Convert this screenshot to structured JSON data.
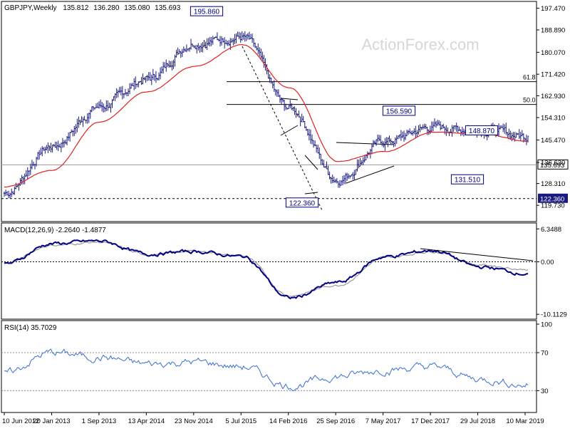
{
  "header": {
    "symbol": "GBPJPY,Weekly",
    "open": "135.812",
    "high": "136.280",
    "low": "135.080",
    "close": "135.693"
  },
  "watermark": "ActionForex.com",
  "colors": {
    "price": "#1a1a80",
    "ma": "#e02020",
    "macd": "#000080",
    "signal": "#9a9a9a",
    "rsi": "#3a6fd0",
    "label_box": "#000080"
  },
  "x_axis": {
    "tick_labels": [
      "10 Jun 2012",
      "20 Jan 2013",
      "1 Sep 2013",
      "13 Apr 2014",
      "23 Nov 2014",
      "5 Jul 2015",
      "14 Feb 2016",
      "25 Sep 2016",
      "7 May 2017",
      "17 Dec 2017",
      "29 Jul 2018",
      "10 Mar 2019"
    ]
  },
  "chart_data": [
    {
      "type": "line",
      "panel": "price",
      "ylim": [
        115.0,
        199.0
      ],
      "y_ticks": [
        "197.470",
        "188.890",
        "180.070",
        "171.420",
        "162.930",
        "154.310",
        "145.470",
        "136.630",
        "128.310",
        "119.730"
      ],
      "y_tick_values": [
        197.47,
        188.89,
        180.07,
        171.42,
        162.93,
        154.31,
        145.47,
        136.63,
        128.31,
        119.73
      ],
      "last_price_label": "135.693",
      "last_price": 135.693,
      "support_label": "122.360",
      "support": 122.36,
      "x": [
        "10 Jun 2012",
        "20 Jan 2013",
        "1 Sep 2013",
        "13 Apr 2014",
        "23 Nov 2014",
        "5 Jul 2015",
        "14 Feb 2016",
        "25 Sep 2016",
        "7 May 2017",
        "17 Dec 2017",
        "29 Jul 2018",
        "10 Mar 2019"
      ],
      "series": [
        {
          "values": [
            124.5,
            143.0,
            158.5,
            169.5,
            184.0,
            186.0,
            158.0,
            130.0,
            145.0,
            150.5,
            149.5,
            147.0
          ]
        },
        {
          "values": [
            127.0,
            133.5,
            152.5,
            164.5,
            174.5,
            183.0,
            166.0,
            137.0,
            141.0,
            148.5,
            148.0,
            145.0
          ]
        }
      ],
      "fib_levels": [
        {
          "label": "61.8",
          "value": 168.5
        },
        {
          "label": "50.0",
          "value": 159.5
        }
      ],
      "annotations": [
        {
          "label": "195.860",
          "value": 195.86
        },
        {
          "label": "122.360",
          "value": 122.36
        },
        {
          "label": "156.590",
          "value": 156.59
        },
        {
          "label": "148.870",
          "value": 148.87
        },
        {
          "label": "131.510",
          "value": 131.51
        }
      ]
    },
    {
      "type": "line",
      "panel": "macd",
      "title": "MACD(12,26,9) -2.2640 -1.4877",
      "ylim": [
        -10.5,
        6.8
      ],
      "y_ticks": [
        "6.3488",
        "0.00",
        "-10.1129"
      ],
      "y_tick_values": [
        6.3488,
        0.0,
        -10.1129
      ],
      "x": [
        "10 Jun 2012",
        "20 Jan 2013",
        "1 Sep 2013",
        "13 Apr 2014",
        "23 Nov 2014",
        "5 Jul 2015",
        "14 Feb 2016",
        "25 Sep 2016",
        "7 May 2017",
        "17 Dec 2017",
        "29 Jul 2018",
        "10 Mar 2019"
      ],
      "series": [
        {
          "values": [
            -0.5,
            3.5,
            4.0,
            1.5,
            2.0,
            1.0,
            -7.0,
            -4.0,
            1.0,
            2.2,
            -1.0,
            -2.264
          ]
        },
        {
          "values": [
            -0.3,
            3.2,
            3.8,
            1.4,
            2.1,
            1.1,
            -6.5,
            -4.5,
            0.8,
            2.0,
            -0.6,
            -1.4877
          ]
        }
      ]
    },
    {
      "type": "line",
      "panel": "rsi",
      "title": "RSI(14) 35.7029",
      "ylim": [
        10,
        100
      ],
      "y_ticks": [
        "100",
        "70",
        "30"
      ],
      "y_tick_values": [
        100,
        70,
        30
      ],
      "x": [
        "10 Jun 2012",
        "20 Jan 2013",
        "1 Sep 2013",
        "13 Apr 2014",
        "23 Nov 2014",
        "5 Jul 2015",
        "14 Feb 2016",
        "25 Sep 2016",
        "7 May 2017",
        "17 Dec 2017",
        "29 Jul 2018",
        "10 Mar 2019"
      ],
      "series": [
        {
          "values": [
            48,
            70,
            65,
            58,
            60,
            55,
            35,
            45,
            52,
            55,
            42,
            35.7029
          ]
        }
      ]
    }
  ]
}
